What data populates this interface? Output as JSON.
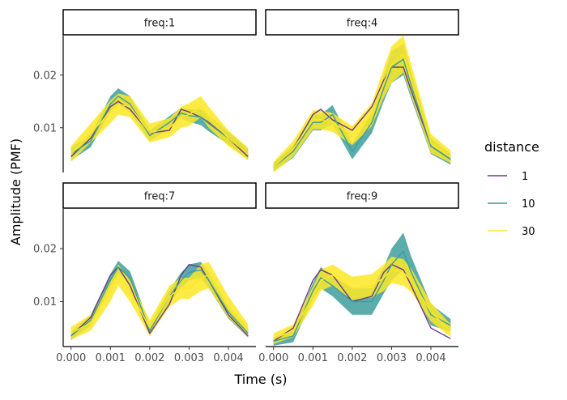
{
  "chart_data": {
    "type": "line",
    "xlabel": "Time (s)",
    "ylabel": "Amplitude (PMF)",
    "xlim": [
      -0.0002,
      0.0047
    ],
    "ylim": [
      0.0015,
      0.0275
    ],
    "x_ticks": [
      0.0,
      0.001,
      0.002,
      0.003,
      0.004
    ],
    "x_tick_labels": [
      "0.000",
      "0.001",
      "0.002",
      "0.003",
      "0.004"
    ],
    "y_ticks": [
      0.01,
      0.02
    ],
    "y_tick_labels": [
      "0.01",
      "0.02"
    ],
    "legend": {
      "title": "distance",
      "position": "right",
      "entries": [
        {
          "label": "1",
          "color": "#6b3a8c"
        },
        {
          "label": "10",
          "color": "#3f9e9c"
        },
        {
          "label": "30",
          "color": "#fde725"
        }
      ]
    },
    "grid": false,
    "x": [
      0.0,
      0.0005,
      0.001,
      0.0012,
      0.0015,
      0.002,
      0.0025,
      0.0028,
      0.003,
      0.0033,
      0.0035,
      0.004,
      0.0045
    ],
    "panels": [
      {
        "strip": "freq:1",
        "series": [
          {
            "name": "1",
            "values": [
              0.0045,
              0.008,
              0.014,
              0.015,
              0.0135,
              0.009,
              0.0095,
              0.0135,
              0.013,
              0.012,
              0.011,
              0.008,
              0.0045
            ]
          },
          {
            "name": "10",
            "values": [
              0.005,
              0.0075,
              0.0145,
              0.016,
              0.0145,
              0.0085,
              0.011,
              0.0128,
              0.0123,
              0.012,
              0.0108,
              0.008,
              0.005
            ],
            "band": [
              0.0012,
              0.0012,
              0.0015,
              0.0015,
              0.0015,
              0.001,
              0.0012,
              0.001,
              0.0012,
              0.0015,
              0.0015,
              0.0012,
              0.001
            ]
          },
          {
            "name": "30",
            "values": [
              0.005,
              0.009,
              0.013,
              0.0145,
              0.014,
              0.009,
              0.01,
              0.012,
              0.0125,
              0.014,
              0.012,
              0.008,
              0.005
            ],
            "band": [
              0.0015,
              0.0018,
              0.0022,
              0.002,
              0.002,
              0.0018,
              0.0018,
              0.002,
              0.0022,
              0.002,
              0.002,
              0.0015,
              0.0012
            ]
          }
        ]
      },
      {
        "strip": "freq:4",
        "series": [
          {
            "name": "1",
            "values": [
              0.0025,
              0.006,
              0.0125,
              0.0135,
              0.0115,
              0.0095,
              0.014,
              0.019,
              0.0215,
              0.0215,
              0.017,
              0.0065,
              0.004
            ]
          },
          {
            "name": "10",
            "values": [
              0.0025,
              0.0055,
              0.011,
              0.011,
              0.0125,
              0.0055,
              0.011,
              0.0175,
              0.0215,
              0.023,
              0.018,
              0.0065,
              0.004
            ],
            "band": [
              0.0008,
              0.0012,
              0.0015,
              0.0015,
              0.0018,
              0.0015,
              0.002,
              0.0025,
              0.003,
              0.003,
              0.0025,
              0.0015,
              0.001
            ]
          },
          {
            "name": "30",
            "values": [
              0.0025,
              0.006,
              0.0115,
              0.0115,
              0.011,
              0.0085,
              0.0125,
              0.0185,
              0.022,
              0.024,
              0.019,
              0.007,
              0.0045
            ],
            "band": [
              0.001,
              0.0015,
              0.0018,
              0.0018,
              0.0018,
              0.0018,
              0.0022,
              0.0028,
              0.0035,
              0.0035,
              0.003,
              0.0018,
              0.0012
            ]
          }
        ]
      },
      {
        "strip": "freq:7",
        "series": [
          {
            "name": "1",
            "values": [
              0.0035,
              0.007,
              0.015,
              0.0165,
              0.013,
              0.004,
              0.0095,
              0.015,
              0.017,
              0.0165,
              0.014,
              0.0075,
              0.0035
            ]
          },
          {
            "name": "10",
            "values": [
              0.0035,
              0.0065,
              0.014,
              0.0165,
              0.0145,
              0.0045,
              0.011,
              0.014,
              0.0155,
              0.016,
              0.014,
              0.008,
              0.004
            ],
            "band": [
              0.0008,
              0.001,
              0.0012,
              0.0012,
              0.0012,
              0.001,
              0.0012,
              0.0015,
              0.0015,
              0.0015,
              0.0015,
              0.0012,
              0.0008
            ]
          },
          {
            "name": "30",
            "values": [
              0.004,
              0.006,
              0.012,
              0.015,
              0.012,
              0.005,
              0.011,
              0.0125,
              0.0125,
              0.0145,
              0.015,
              0.009,
              0.0045
            ],
            "band": [
              0.0012,
              0.0015,
              0.002,
              0.002,
              0.002,
              0.0015,
              0.002,
              0.002,
              0.002,
              0.0025,
              0.0025,
              0.002,
              0.0012
            ]
          }
        ]
      },
      {
        "strip": "freq:9",
        "series": [
          {
            "name": "1",
            "values": [
              0.0025,
              0.005,
              0.014,
              0.016,
              0.015,
              0.01,
              0.011,
              0.0155,
              0.017,
              0.016,
              0.013,
              0.005,
              0.003
            ]
          },
          {
            "name": "10",
            "values": [
              0.0025,
              0.0035,
              0.012,
              0.0145,
              0.013,
              0.01,
              0.01,
              0.014,
              0.017,
              0.0195,
              0.0155,
              0.0075,
              0.0055
            ],
            "band": [
              0.0008,
              0.0012,
              0.0015,
              0.002,
              0.002,
              0.0025,
              0.0025,
              0.0025,
              0.003,
              0.0035,
              0.003,
              0.002,
              0.0012
            ]
          },
          {
            "name": "30",
            "values": [
              0.003,
              0.0045,
              0.011,
              0.014,
              0.015,
              0.0125,
              0.013,
              0.0145,
              0.016,
              0.0155,
              0.014,
              0.008,
              0.0045
            ],
            "band": [
              0.001,
              0.0012,
              0.0018,
              0.002,
              0.002,
              0.0022,
              0.0022,
              0.0025,
              0.0025,
              0.0025,
              0.0022,
              0.0018,
              0.0012
            ]
          }
        ]
      }
    ]
  }
}
